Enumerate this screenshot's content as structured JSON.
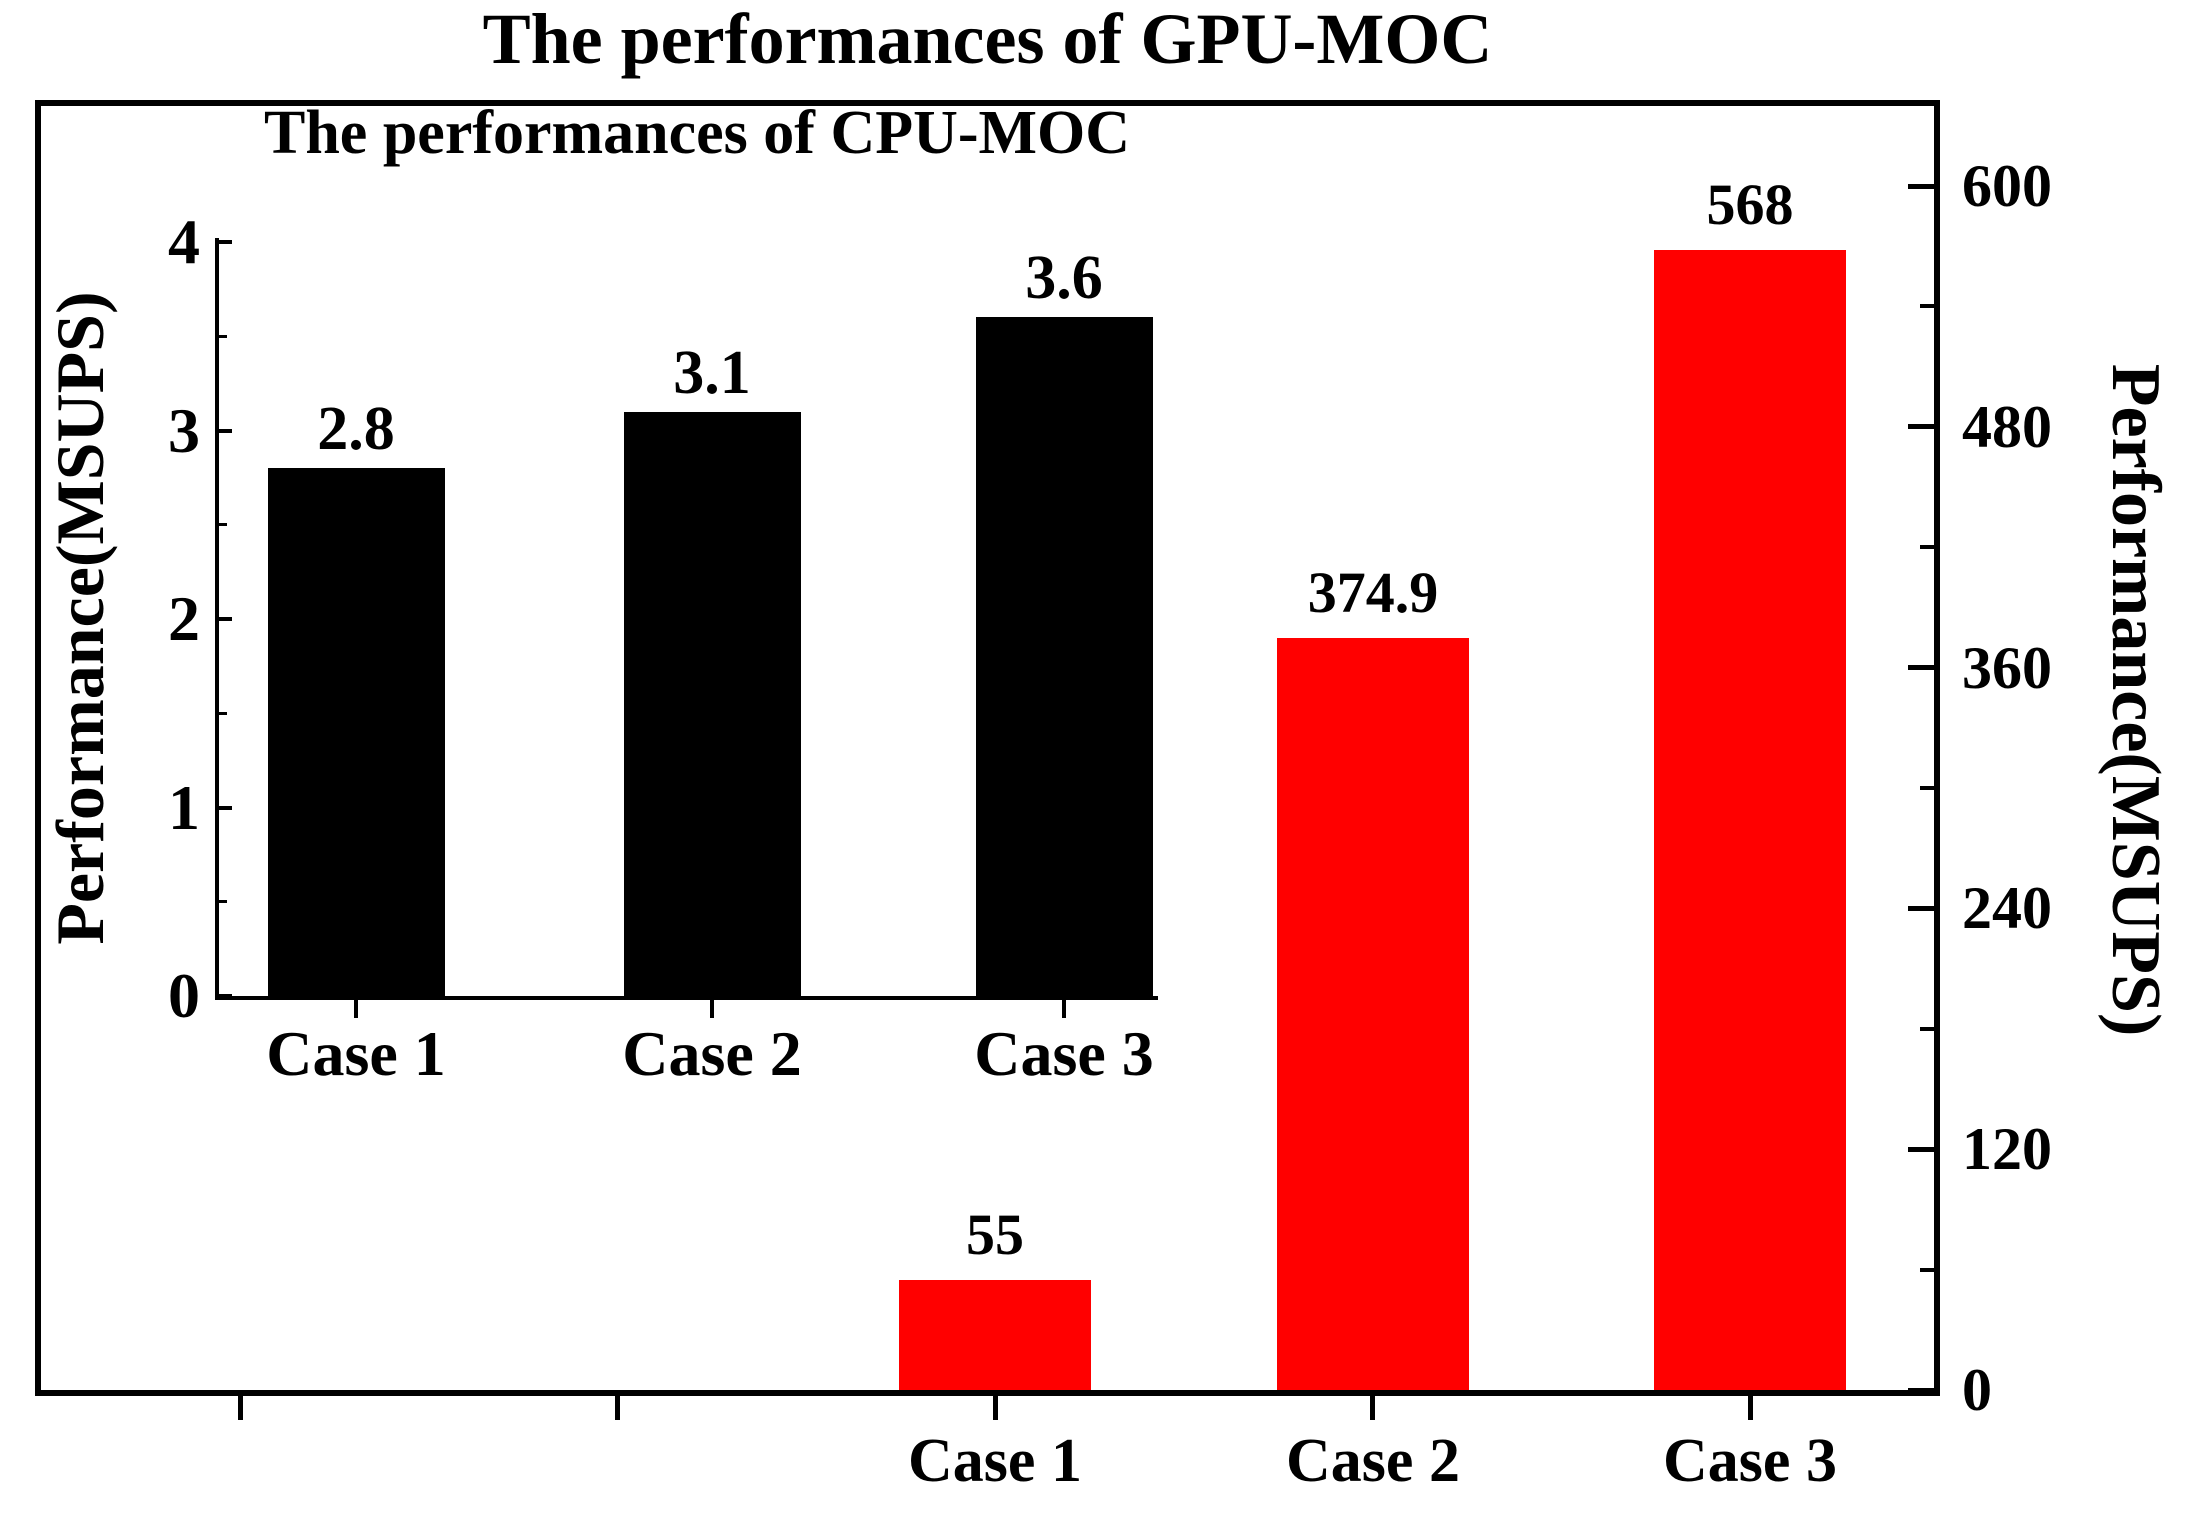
{
  "figure": {
    "background_color": "#ffffff",
    "axis_color": "#000000"
  },
  "chart_data": [
    {
      "type": "bar",
      "role": "main chart",
      "title": "The performances of GPU-MOC",
      "ylabel": "Performance(MSUPS)",
      "ylabel_side": "right",
      "categories": [
        "Case 1",
        "Case 2",
        "Case 3"
      ],
      "values": [
        55,
        374.9,
        568
      ],
      "value_labels": [
        "55",
        "374.9",
        "568"
      ],
      "yticks_major": [
        0,
        120,
        240,
        360,
        480,
        600
      ],
      "yticks_minor": [
        60,
        180,
        300,
        420,
        540
      ],
      "ylim": [
        0,
        645
      ],
      "bar_color": "#ff0000",
      "grid": false,
      "legend": "none"
    },
    {
      "type": "bar",
      "role": "inset chart",
      "title": "The performances of CPU-MOC",
      "ylabel": "Performance(MSUPS)",
      "ylabel_side": "left",
      "categories": [
        "Case 1",
        "Case 2",
        "Case 3"
      ],
      "values": [
        2.8,
        3.1,
        3.6
      ],
      "value_labels": [
        "2.8",
        "3.1",
        "3.6"
      ],
      "yticks_major": [
        0,
        1,
        2,
        3,
        4
      ],
      "yticks_minor": [
        0.5,
        1.5,
        2.5,
        3.5
      ],
      "ylim": [
        0,
        4.1
      ],
      "bar_color": "#000000",
      "grid": false,
      "legend": "none"
    }
  ]
}
